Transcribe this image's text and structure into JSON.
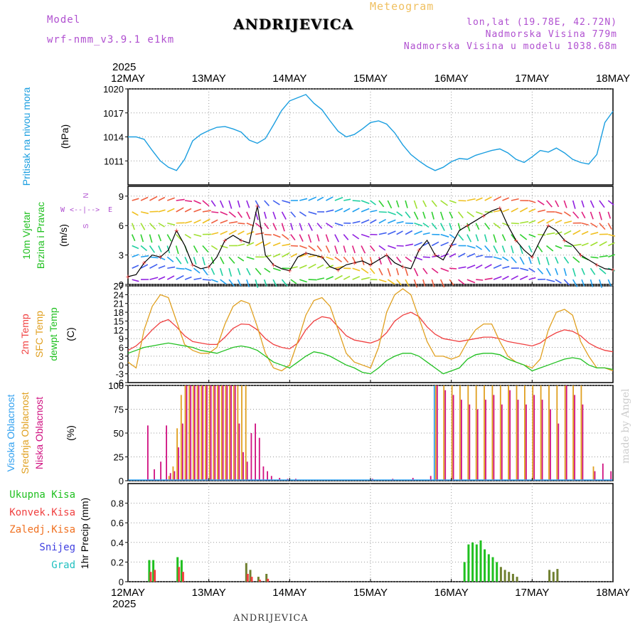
{
  "header": {
    "model_label": "Model",
    "model_name": "wrf-nmm_v3.9.1 e1km",
    "station": "ANDRIJEVICA",
    "product": "Meteogram",
    "lonlat": "lon,lat (19.78E, 42.72N)",
    "elevation": "Nadmorska Visina 779m",
    "model_elevation": "Nadmorska Visina u modelu 1038.68m",
    "footer_station": "ANDRIJEVICA",
    "credit": "made by Angel"
  },
  "time_axis": {
    "year": "2025",
    "ticks": [
      "12MAY",
      "13MAY",
      "14MAY",
      "15MAY",
      "16MAY",
      "17MAY",
      "18MAY"
    ]
  },
  "colors": {
    "pressure": "#1a9ee0",
    "wind_label": "#20c020",
    "temp2m": "#f04040",
    "sfc_temp": "#e0a020",
    "dewpt": "#20c020",
    "high_cloud": "#30a0f0",
    "mid_cloud": "#e0a020",
    "low_cloud": "#d01080",
    "total_precip": "#20c020",
    "conv_precip": "#f04040",
    "frozen": "#f07020",
    "snow": "#4040e0",
    "hail": "#20c0c0",
    "purple": "#b050d0"
  },
  "panels": {
    "pressure": {
      "label": "Pritisak na nivou mora",
      "unit": "(hPa)"
    },
    "wind": {
      "label1": "10m Vjetar",
      "label2": "Brzina i Pravac",
      "unit": "(m/s)",
      "compass_w": "W",
      "compass_e": "E",
      "compass_n": "N",
      "compass_s": "S"
    },
    "temp": {
      "label1": "2m Temp",
      "label2": "SFC Temp",
      "label3": "dewpt Temp",
      "unit": "(C)"
    },
    "cloud": {
      "label1": "Visoka Oblacnost",
      "label2": "Srednja Oblacnost",
      "label3": "Niska Oblacnost",
      "unit": "(%)"
    },
    "precip": {
      "label1": "Ukupna Kisa",
      "label2": "Konvek.Kisa",
      "label3": "Zaledj.Kisa",
      "label4": "Snijeg",
      "label5": "Grad",
      "unit": "1hr Precip (mm)"
    }
  },
  "chart_data": [
    {
      "type": "line",
      "name": "pressure",
      "ylabel": "Pritisak na nivou mora (hPa)",
      "ylim": [
        1008,
        1020
      ],
      "yticks": [
        1011,
        1014,
        1017,
        1020
      ],
      "x_days": [
        0,
        0.1,
        0.2,
        0.3,
        0.4,
        0.5,
        0.6,
        0.7,
        0.8,
        0.9,
        1.0,
        1.1,
        1.2,
        1.3,
        1.4,
        1.5,
        1.6,
        1.7,
        1.8,
        1.9,
        2.0,
        2.1,
        2.2,
        2.3,
        2.4,
        2.5,
        2.6,
        2.7,
        2.8,
        2.9,
        3.0,
        3.1,
        3.2,
        3.3,
        3.4,
        3.5,
        3.6,
        3.7,
        3.8,
        3.9,
        4.0,
        4.1,
        4.2,
        4.3,
        4.4,
        4.5,
        4.6,
        4.7,
        4.8,
        4.9,
        5.0,
        5.1,
        5.2,
        5.3,
        5.4,
        5.5,
        5.6,
        5.7,
        5.8,
        5.9,
        6.0
      ],
      "values": [
        1014,
        1014,
        1013.7,
        1012.3,
        1011,
        1010.2,
        1009.8,
        1011.2,
        1013.5,
        1014.3,
        1014.8,
        1015.2,
        1015.3,
        1015.0,
        1014.6,
        1013.6,
        1013.2,
        1013.8,
        1015.5,
        1017.3,
        1018.5,
        1018.9,
        1019.3,
        1018.2,
        1017.4,
        1016.0,
        1014.7,
        1014.0,
        1014.3,
        1015.0,
        1015.8,
        1016.0,
        1015.6,
        1014.5,
        1013.0,
        1011.8,
        1011.0,
        1010.3,
        1009.8,
        1010.2,
        1010.9,
        1011.3,
        1011.2,
        1011.7,
        1012.0,
        1012.3,
        1012.5,
        1012.0,
        1011.2,
        1010.8,
        1011.5,
        1012.3,
        1012.1,
        1012.6,
        1012.0,
        1011.2,
        1010.8,
        1010.6,
        1011.8,
        1015.8,
        1017.2
      ]
    },
    {
      "type": "line",
      "name": "wind_speed",
      "ylabel": "10m Vjetar Brzina i Pravac (m/s)",
      "ylim": [
        0,
        10
      ],
      "yticks": [
        0,
        3,
        6,
        9
      ],
      "x_days": [
        0,
        0.1,
        0.2,
        0.3,
        0.4,
        0.5,
        0.6,
        0.7,
        0.8,
        0.9,
        1.0,
        1.1,
        1.2,
        1.3,
        1.4,
        1.5,
        1.6,
        1.7,
        1.8,
        1.9,
        2.0,
        2.1,
        2.2,
        2.3,
        2.4,
        2.5,
        2.6,
        2.7,
        2.8,
        2.9,
        3.0,
        3.1,
        3.2,
        3.3,
        3.4,
        3.5,
        3.6,
        3.7,
        3.8,
        3.9,
        4.0,
        4.1,
        4.2,
        4.3,
        4.4,
        4.5,
        4.6,
        4.7,
        4.8,
        4.9,
        5.0,
        5.1,
        5.2,
        5.3,
        5.4,
        5.5,
        5.6,
        5.7,
        5.8,
        5.9,
        6.0
      ],
      "values": [
        0.8,
        1.0,
        2.2,
        3.0,
        2.8,
        3.5,
        5.5,
        4.0,
        2.0,
        1.6,
        1.8,
        2.8,
        4.5,
        5.0,
        4.5,
        4.2,
        8.0,
        3.0,
        2.0,
        1.6,
        1.4,
        2.8,
        3.2,
        3.0,
        2.8,
        1.8,
        1.5,
        2.0,
        2.2,
        2.4,
        2.0,
        2.5,
        3.0,
        2.2,
        1.8,
        1.6,
        3.5,
        4.5,
        3.0,
        2.5,
        4.0,
        5.5,
        6.0,
        6.5,
        7.0,
        7.5,
        7.8,
        6.0,
        4.5,
        3.5,
        2.8,
        4.5,
        6.0,
        5.5,
        4.5,
        4.0,
        3.0,
        2.5,
        2.0,
        1.6,
        1.5
      ]
    },
    {
      "type": "line",
      "name": "temperature",
      "ylabel": "Temp (C)",
      "ylim": [
        -6,
        27
      ],
      "yticks": [
        -6,
        -3,
        0,
        3,
        6,
        9,
        12,
        15,
        18,
        21,
        24,
        27
      ],
      "x_days": [
        0,
        0.1,
        0.2,
        0.3,
        0.4,
        0.5,
        0.6,
        0.7,
        0.8,
        0.9,
        1.0,
        1.1,
        1.2,
        1.3,
        1.4,
        1.5,
        1.6,
        1.7,
        1.8,
        1.9,
        2.0,
        2.1,
        2.2,
        2.3,
        2.4,
        2.5,
        2.6,
        2.7,
        2.8,
        2.9,
        3.0,
        3.1,
        3.2,
        3.3,
        3.4,
        3.5,
        3.6,
        3.7,
        3.8,
        3.9,
        4.0,
        4.1,
        4.2,
        4.3,
        4.4,
        4.5,
        4.6,
        4.7,
        4.8,
        4.9,
        5.0,
        5.1,
        5.2,
        5.3,
        5.4,
        5.5,
        5.6,
        5.7,
        5.8,
        5.9,
        6.0
      ],
      "series": [
        {
          "name": "2m Temp",
          "values": [
            5,
            6.5,
            9,
            12,
            14.5,
            15.5,
            13,
            10,
            8,
            7.5,
            7,
            7,
            9.5,
            12.5,
            14,
            13.8,
            12,
            9,
            7,
            6,
            5.5,
            7.5,
            12,
            15,
            16.5,
            16,
            13,
            10,
            8.5,
            8,
            7.5,
            8.5,
            11,
            15,
            17,
            18,
            16.5,
            13,
            10.5,
            9,
            8.5,
            8,
            8.5,
            9,
            9.5,
            9.5,
            9,
            8,
            7.5,
            7,
            6.5,
            7.5,
            9.5,
            11,
            12,
            11.5,
            10,
            7.5,
            6,
            5,
            4.5
          ]
        },
        {
          "name": "SFC Temp",
          "values": [
            1,
            -1,
            12,
            20,
            24,
            23,
            15,
            7,
            5,
            4,
            4,
            6,
            14,
            20,
            22,
            21,
            13,
            4,
            -1,
            -2,
            0,
            8,
            17,
            22,
            23,
            20,
            12,
            4,
            1,
            0,
            -1,
            6,
            18,
            24,
            26,
            24,
            16,
            8,
            3,
            3,
            2,
            3,
            8,
            12,
            14,
            14,
            8,
            3,
            1,
            0,
            -1,
            2,
            12,
            18,
            19,
            17,
            8,
            3,
            -1,
            -1,
            -2
          ]
        },
        {
          "name": "dewpt Temp",
          "values": [
            4,
            5,
            6,
            6.5,
            7,
            7.5,
            7,
            6.5,
            6,
            5,
            4.5,
            4,
            5,
            6,
            6.5,
            6,
            5,
            3,
            1,
            0,
            -1,
            1,
            3,
            4.5,
            4,
            3,
            1.5,
            0,
            -1,
            -2.5,
            -3,
            -1,
            1.5,
            3,
            4,
            4,
            3,
            1,
            -1,
            -3,
            -2,
            -1,
            2,
            3.5,
            4,
            4,
            3.5,
            2,
            1,
            0,
            -2,
            -1,
            0,
            1,
            2,
            2.5,
            2,
            0,
            -1,
            -1,
            -1.5
          ]
        }
      ]
    },
    {
      "type": "bar",
      "name": "cloud_cover",
      "ylabel": "Oblacnost (%)",
      "ylim": [
        0,
        100
      ],
      "yticks": [
        0,
        25,
        50,
        75,
        100
      ],
      "x_days": [
        0.22,
        0.3,
        0.38,
        0.45,
        0.5,
        0.55,
        0.6,
        0.65,
        0.7,
        0.75,
        0.8,
        0.85,
        0.9,
        0.95,
        1.0,
        1.05,
        1.1,
        1.15,
        1.2,
        1.25,
        1.3,
        1.35,
        1.4,
        1.45,
        1.5,
        1.55,
        1.6,
        1.65,
        1.7,
        1.75,
        1.85,
        1.95,
        2.05,
        3.0,
        3.25,
        3.5,
        3.72,
        3.8,
        3.9,
        4.0,
        4.1,
        4.2,
        4.3,
        4.4,
        4.5,
        4.6,
        4.7,
        4.8,
        4.9,
        5.0,
        5.1,
        5.2,
        5.3,
        5.4,
        5.5,
        5.6,
        5.75,
        5.85,
        5.95
      ],
      "series": [
        {
          "name": "Visoka Oblacnost",
          "values": [
            0,
            0,
            0,
            0,
            0,
            0,
            0,
            0,
            0,
            0,
            0,
            0,
            0,
            0,
            0,
            0,
            0,
            0,
            0,
            0,
            0,
            0,
            0,
            0,
            0,
            0,
            0,
            0,
            0,
            0,
            0,
            0,
            0,
            0,
            0,
            0,
            0,
            100,
            0,
            0,
            0,
            0,
            0,
            0,
            0,
            0,
            0,
            0,
            0,
            0,
            0,
            0,
            0,
            0,
            0,
            0,
            0,
            0,
            0
          ]
        },
        {
          "name": "Srednja Oblacnost",
          "values": [
            0,
            0,
            0,
            0,
            5,
            15,
            55,
            90,
            100,
            100,
            100,
            100,
            100,
            100,
            100,
            100,
            100,
            100,
            100,
            100,
            100,
            100,
            100,
            100,
            0,
            0,
            0,
            0,
            0,
            0,
            0,
            0,
            0,
            0,
            0,
            0,
            0,
            100,
            100,
            100,
            100,
            100,
            100,
            100,
            100,
            100,
            100,
            100,
            100,
            100,
            100,
            100,
            100,
            100,
            100,
            100,
            15,
            0,
            0
          ]
        },
        {
          "name": "Niska Oblacnost",
          "values": [
            58,
            12,
            20,
            58,
            8,
            10,
            35,
            60,
            100,
            100,
            100,
            100,
            100,
            100,
            100,
            100,
            100,
            100,
            100,
            100,
            100,
            60,
            30,
            20,
            50,
            60,
            45,
            15,
            10,
            5,
            3,
            2,
            2,
            2,
            2,
            3,
            5,
            100,
            95,
            90,
            85,
            80,
            75,
            85,
            90,
            80,
            95,
            85,
            80,
            90,
            85,
            75,
            60,
            100,
            90,
            80,
            10,
            18,
            10
          ]
        }
      ]
    },
    {
      "type": "bar",
      "name": "precipitation",
      "ylabel": "1hr Precip (mm)",
      "ylim": [
        0,
        1.0
      ],
      "yticks": [
        0,
        0.2,
        0.4,
        0.6,
        0.8
      ],
      "x_days": [
        0.25,
        0.3,
        0.6,
        0.65,
        1.45,
        1.5,
        1.6,
        1.7,
        4.15,
        4.2,
        4.25,
        4.3,
        4.35,
        4.4,
        4.45,
        4.5,
        4.55,
        4.6,
        4.65,
        4.7,
        4.75,
        4.8,
        5.2,
        5.25,
        5.3
      ],
      "series": [
        {
          "name": "Ukupna Kisa",
          "values": [
            0.22,
            0.22,
            0.25,
            0.22,
            0.19,
            0.12,
            0.05,
            0.08,
            0.2,
            0.38,
            0.4,
            0.38,
            0.42,
            0.33,
            0.28,
            0.25,
            0.2,
            0.15,
            0.12,
            0.1,
            0.08,
            0.05,
            0.12,
            0.1,
            0.13
          ]
        },
        {
          "name": "Konvek.Kisa",
          "values": [
            0.1,
            0.12,
            0.15,
            0.1,
            0.08,
            0.05,
            0.02,
            0.03,
            0,
            0,
            0,
            0,
            0,
            0,
            0,
            0,
            0,
            0,
            0,
            0,
            0,
            0,
            0,
            0,
            0
          ]
        }
      ]
    }
  ]
}
